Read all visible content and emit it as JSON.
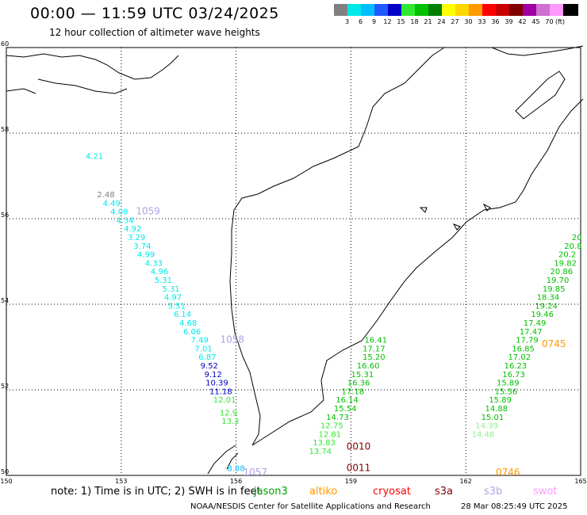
{
  "header": {
    "title": "00:00 — 11:59 UTC 03/24/2025",
    "subtitle": "12 hour collection of altimeter wave heights"
  },
  "scale": {
    "unit": "(ft)",
    "bins": [
      {
        "label": "",
        "color": "#808080"
      },
      {
        "label": "3",
        "color": "#00e8e8"
      },
      {
        "label": "6",
        "color": "#00bfff"
      },
      {
        "label": "9",
        "color": "#1e5aff"
      },
      {
        "label": "12",
        "color": "#0000c8"
      },
      {
        "label": "15",
        "color": "#30e830"
      },
      {
        "label": "18",
        "color": "#00c000"
      },
      {
        "label": "21",
        "color": "#008000"
      },
      {
        "label": "24",
        "color": "#ffff00"
      },
      {
        "label": "27",
        "color": "#ffd700"
      },
      {
        "label": "30",
        "color": "#ff9900"
      },
      {
        "label": "33",
        "color": "#ff0000"
      },
      {
        "label": "36",
        "color": "#c80000"
      },
      {
        "label": "39",
        "color": "#800000"
      },
      {
        "label": "42",
        "color": "#a000a0"
      },
      {
        "label": "45",
        "color": "#d070d0"
      },
      {
        "label": "70",
        "color": "#ff99ff"
      },
      {
        "label": "",
        "color": "#000000"
      }
    ]
  },
  "map": {
    "lat_ticks": [
      "60",
      "58",
      "56",
      "54",
      "52",
      "50"
    ],
    "lon_ticks": [
      "150",
      "153",
      "156",
      "159",
      "162",
      "165"
    ]
  },
  "tracks": [
    {
      "satellite": "cryosat",
      "color": "#00e8e8",
      "points": [
        [
          "4.21",
          57.4,
          152.3
        ]
      ]
    },
    {
      "satellite": "saral",
      "color": "#808080",
      "points": [
        [
          "2.48",
          56.5,
          152.6
        ]
      ]
    },
    {
      "satellite": "s3b",
      "color": "#00e8e8",
      "points": [
        [
          "4.49",
          56.3,
          152.75
        ],
        [
          "4.08",
          56.1,
          152.95
        ],
        [
          "4.34",
          55.9,
          153.1
        ],
        [
          "4.92",
          55.7,
          153.3
        ],
        [
          "3.29",
          55.5,
          153.4
        ],
        [
          "3.74",
          55.3,
          153.55
        ],
        [
          "4.99",
          55.1,
          153.65
        ],
        [
          "4.33",
          54.9,
          153.85
        ],
        [
          "4.96",
          54.7,
          154.0
        ],
        [
          "5.31",
          54.5,
          154.1
        ],
        [
          "5.31",
          54.3,
          154.3
        ],
        [
          "4.97",
          54.1,
          154.35
        ],
        [
          "5.51",
          53.9,
          154.45
        ],
        [
          "6.14",
          53.7,
          154.6
        ],
        [
          "4.68",
          53.5,
          154.75
        ],
        [
          "6.06",
          53.3,
          154.85
        ],
        [
          "7.49",
          53.1,
          155.05
        ],
        [
          "7.01",
          52.9,
          155.15
        ],
        [
          "6.87",
          52.7,
          155.25
        ]
      ]
    },
    {
      "satellite": "s3b-b",
      "color": "#0000c8",
      "points": [
        [
          "9.52",
          52.5,
          155.3
        ],
        [
          "9.12",
          52.3,
          155.4
        ],
        [
          "10.39",
          52.1,
          155.5
        ],
        [
          "11.18",
          51.9,
          155.6
        ]
      ]
    },
    {
      "satellite": "s3b-c",
      "color": "#30e830",
      "points": [
        [
          "12.01",
          51.7,
          155.7
        ],
        [
          "12.9",
          51.4,
          155.8
        ],
        [
          "13.3",
          51.2,
          155.85
        ]
      ]
    },
    {
      "satellite": "s3b-d",
      "color": "#00bfff",
      "points": [
        [
          "8.88",
          50.1,
          156.0
        ]
      ]
    },
    {
      "satellite": "jason3",
      "color": "#00c000",
      "points": [
        [
          "16.41",
          53.1,
          159.65
        ],
        [
          "17.17",
          52.9,
          159.6
        ],
        [
          "15.20",
          52.7,
          159.6
        ],
        [
          "16.60",
          52.5,
          159.45
        ],
        [
          "15.31",
          52.3,
          159.3
        ],
        [
          "16.36",
          52.1,
          159.2
        ],
        [
          "17.18",
          51.9,
          159.05
        ],
        [
          "16.14",
          51.7,
          158.9
        ],
        [
          "15.54",
          51.5,
          158.85
        ],
        [
          "14.73",
          51.3,
          158.65
        ]
      ]
    },
    {
      "satellite": "jason3-b",
      "color": "#30e830",
      "points": [
        [
          "12.75",
          51.1,
          158.5
        ],
        [
          "12.81",
          50.9,
          158.45
        ],
        [
          "13.83",
          50.7,
          158.3
        ],
        [
          "13.74",
          50.5,
          158.2
        ]
      ]
    },
    {
      "satellite": "cfosat",
      "color": "#00c000",
      "points": [
        [
          "20",
          55.5,
          164.9
        ],
        [
          "20.8",
          55.3,
          164.8
        ],
        [
          "20.2",
          55.1,
          164.65
        ],
        [
          "19.82",
          54.9,
          164.6
        ],
        [
          "20.86",
          54.7,
          164.5
        ],
        [
          "19.70",
          54.5,
          164.4
        ],
        [
          "19.85",
          54.3,
          164.3
        ],
        [
          "18.34",
          54.1,
          164.15
        ],
        [
          "19.24",
          53.9,
          164.1
        ],
        [
          "19.46",
          53.7,
          164.0
        ],
        [
          "17.49",
          53.5,
          163.8
        ],
        [
          "17.47",
          53.3,
          163.7
        ],
        [
          "17.79",
          53.1,
          163.6
        ],
        [
          "16.85",
          52.9,
          163.5
        ],
        [
          "17.02",
          52.7,
          163.4
        ],
        [
          "16.23",
          52.5,
          163.3
        ],
        [
          "16.73",
          52.3,
          163.25
        ],
        [
          "15.89",
          52.1,
          163.1
        ],
        [
          "15.56",
          51.9,
          163.05
        ],
        [
          "15.89",
          51.7,
          162.9
        ],
        [
          "14.88",
          51.5,
          162.8
        ],
        [
          "15.01",
          51.3,
          162.7
        ]
      ]
    },
    {
      "satellite": "cfosat-b",
      "color": "#90ee90",
      "points": [
        [
          "14.39",
          51.1,
          162.55
        ],
        [
          "14.48",
          50.9,
          162.45
        ]
      ]
    }
  ],
  "pass_times": [
    {
      "label": "1059",
      "color": "#b0a0e8",
      "lat": 56.1,
      "lon": 153.7
    },
    {
      "label": "1058",
      "color": "#b0a0e8",
      "lat": 53.1,
      "lon": 155.9
    },
    {
      "label": "1057",
      "color": "#b0a0e8",
      "lat": 50.0,
      "lon": 156.5
    },
    {
      "label": "0010",
      "color": "#800000",
      "lat": 50.6,
      "lon": 159.2
    },
    {
      "label": "0011",
      "color": "#800000",
      "lat": 50.1,
      "lon": 159.2
    },
    {
      "label": "0745",
      "color": "#ff9900",
      "lat": 53.0,
      "lon": 164.3
    },
    {
      "label": "0746",
      "color": "#ff9900",
      "lat": 50.0,
      "lon": 163.1
    }
  ],
  "legend": {
    "note": "note: 1) Time is in UTC; 2) SWH is in feet",
    "items": [
      {
        "name": "jason3",
        "color": "#00a000"
      },
      {
        "name": "altiko",
        "color": "#ff9900"
      },
      {
        "name": "cryosat",
        "color": "#ff0000"
      },
      {
        "name": "s3a",
        "color": "#800000"
      },
      {
        "name": "s3b",
        "color": "#b0a0e8"
      },
      {
        "name": "swot",
        "color": "#ff99ff"
      }
    ]
  },
  "footer": {
    "credit": "NOAA/NESDIS Center for Satellite Applications and Research",
    "timestamp": "28 Mar 08:25:49 UTC 2025"
  }
}
